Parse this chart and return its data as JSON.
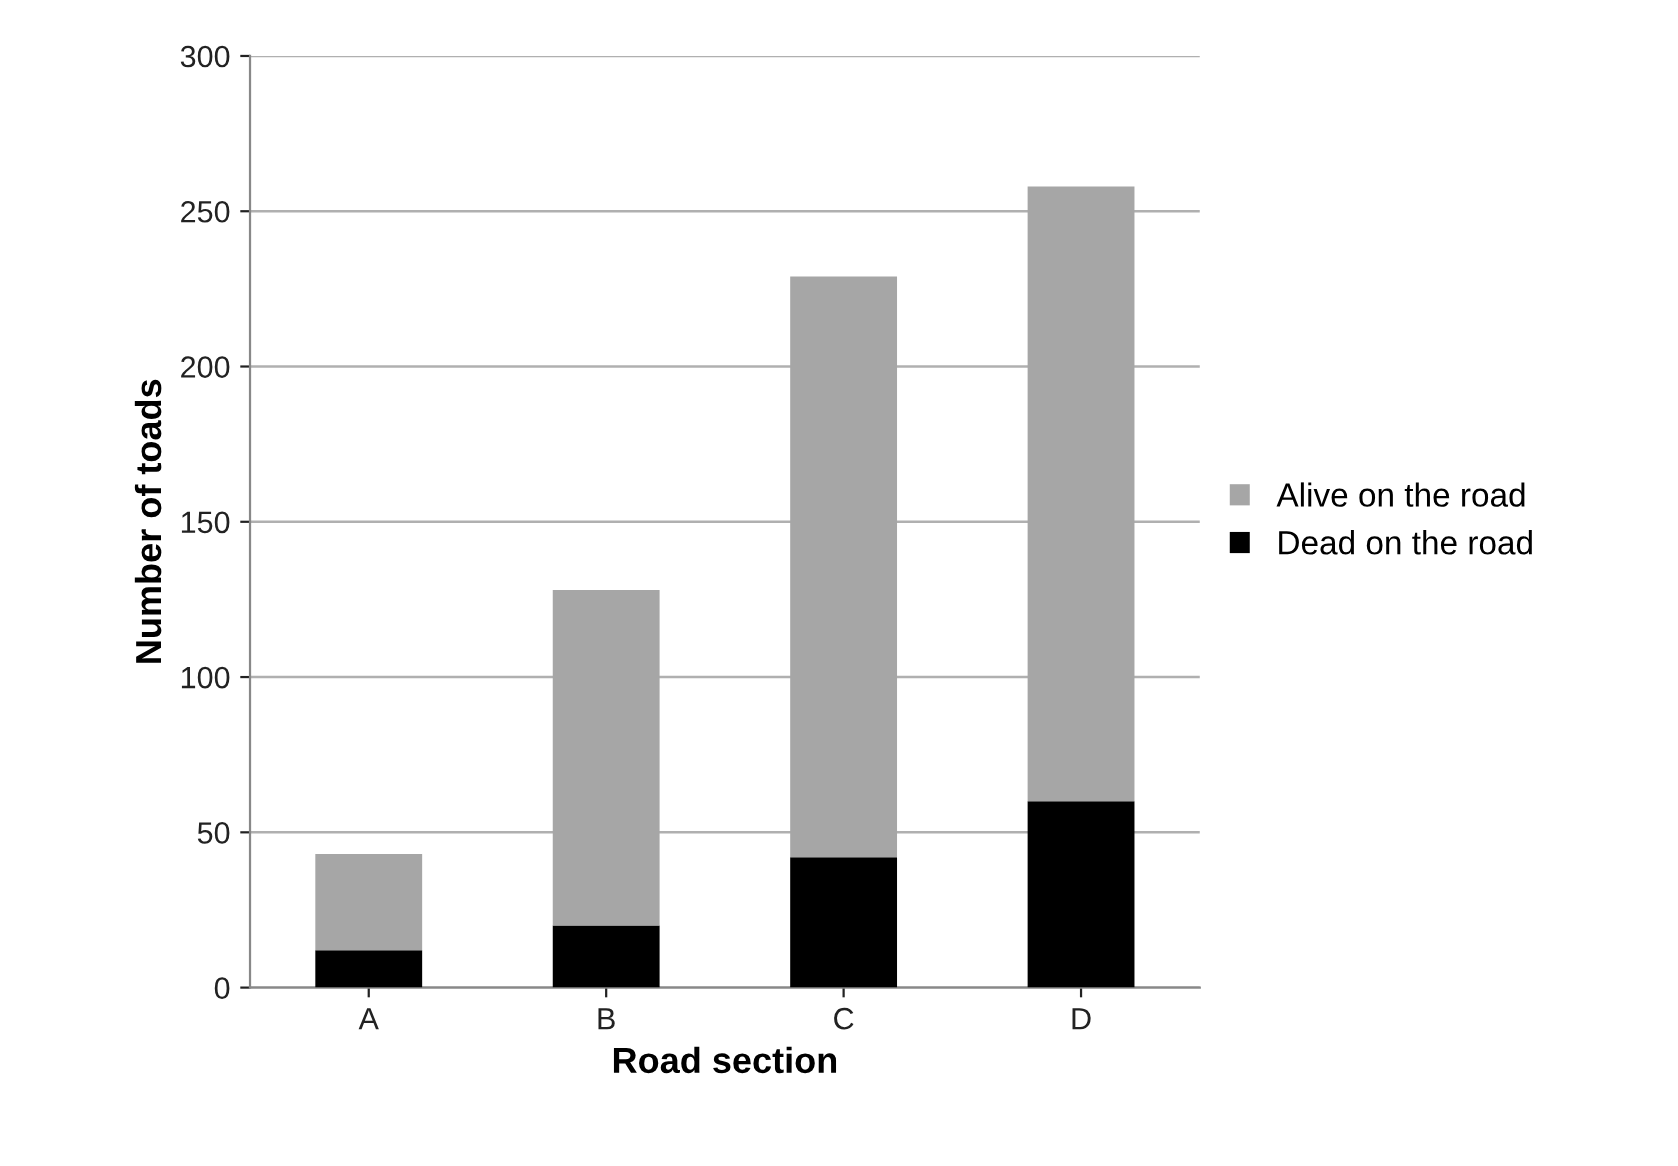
{
  "chart_data": {
    "type": "bar",
    "stacked": true,
    "xlabel": "Road section",
    "ylabel": "Number of toads",
    "categories": [
      "A",
      "B",
      "C",
      "D"
    ],
    "series": [
      {
        "name": "Dead on the road",
        "color": "#000000",
        "values": [
          12,
          20,
          42,
          60
        ]
      },
      {
        "name": "Alive on the road",
        "color": "#a6a6a6",
        "values": [
          31,
          108,
          187,
          198
        ]
      }
    ],
    "ylim": [
      0,
      300
    ],
    "yticks": [
      0,
      50,
      100,
      150,
      200,
      250,
      300
    ],
    "grid": "y",
    "legend": "right"
  }
}
